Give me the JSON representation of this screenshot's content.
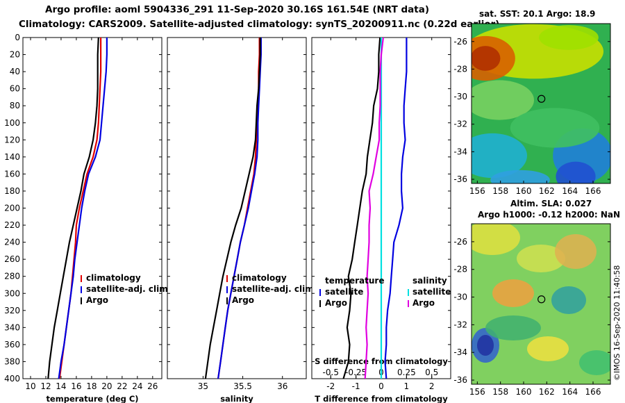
{
  "header": {
    "title_line1": "Argo profile: aoml 5904336_291 11-Sep-2020 30.16S 161.54E (NRT data)",
    "title_line2": "Climatology: CARS2009. Satellite-adjusted climatology: synTS_20200911.nc (0.22d earlier)"
  },
  "maps": {
    "sst": {
      "title": "sat. SST: 20.1 Argo: 18.9",
      "x_ticks": [
        "156",
        "158",
        "160",
        "162",
        "164",
        "166"
      ],
      "y_ticks": [
        "-26",
        "-28",
        "-30",
        "-32",
        "-34",
        "-36"
      ],
      "x_values": [
        156,
        158,
        160,
        162,
        164,
        166
      ],
      "y_values": [
        -26,
        -28,
        -30,
        -32,
        -34,
        -36
      ],
      "lon_range": [
        155.5,
        167.5
      ],
      "lat_range": [
        -36.3,
        -24.7
      ],
      "marker": {
        "lon": 161.54,
        "lat": -30.16
      }
    },
    "sla": {
      "title_line1": "Altim. SLA: 0.027",
      "title_line2": "Argo h1000: -0.12 h2000: NaN",
      "x_ticks": [
        "156",
        "158",
        "160",
        "162",
        "164",
        "166"
      ],
      "y_ticks": [
        "-26",
        "-28",
        "-30",
        "-32",
        "-34",
        "-36"
      ],
      "x_values": [
        156,
        158,
        160,
        162,
        164,
        166
      ],
      "y_values": [
        -26,
        -28,
        -30,
        -32,
        -34,
        -36
      ],
      "lon_range": [
        155.5,
        167.5
      ],
      "lat_range": [
        -36.3,
        -24.7
      ],
      "marker": {
        "lon": 161.54,
        "lat": -30.16
      }
    }
  },
  "watermark": "©IMOS 16-Sep-2020 11:40:58",
  "colors": {
    "climatology": "#e00000",
    "satellite": "#0000e0",
    "argo": "#000000",
    "s_satellite": "#00e0e0",
    "s_argo": "#e000e0"
  },
  "chart_data": [
    {
      "type": "line",
      "name": "temperature",
      "xlabel": "temperature (deg C)",
      "ylabel": "",
      "xlim": [
        9,
        27.2
      ],
      "ylim": [
        400,
        0
      ],
      "x_ticks": [
        10,
        12,
        14,
        16,
        18,
        20,
        22,
        24,
        26
      ],
      "y_ticks": [
        0,
        20,
        40,
        60,
        80,
        100,
        120,
        140,
        160,
        180,
        200,
        220,
        240,
        260,
        280,
        300,
        320,
        340,
        360,
        380,
        400
      ],
      "legend": [
        "climatology",
        "satellite-adj. clim.",
        "Argo"
      ],
      "legend_position": "lower-right",
      "series": [
        {
          "name": "climatology",
          "depth": [
            0,
            20,
            40,
            60,
            80,
            100,
            120,
            140,
            160,
            180,
            200,
            220,
            240,
            260,
            280,
            300,
            320,
            340,
            360,
            380,
            400
          ],
          "values": [
            19.2,
            19.2,
            19.2,
            19.1,
            19.0,
            18.9,
            18.7,
            18.2,
            17.4,
            16.9,
            16.4,
            16.0,
            15.9,
            15.7,
            15.5,
            15.3,
            15.0,
            14.7,
            14.4,
            14.1,
            13.8
          ]
        },
        {
          "name": "satellite-adj. clim.",
          "depth": [
            0,
            20,
            40,
            60,
            80,
            100,
            120,
            140,
            160,
            180,
            200,
            220,
            240,
            260,
            280,
            300,
            320,
            340,
            360,
            380,
            400
          ],
          "values": [
            20.0,
            20.0,
            19.9,
            19.7,
            19.5,
            19.3,
            19.1,
            18.5,
            17.6,
            17.1,
            16.7,
            16.4,
            16.1,
            15.8,
            15.6,
            15.3,
            15.0,
            14.7,
            14.4,
            14.0,
            13.7
          ]
        },
        {
          "name": "Argo",
          "depth": [
            0,
            20,
            40,
            60,
            80,
            100,
            120,
            140,
            160,
            180,
            200,
            220,
            240,
            260,
            280,
            300,
            320,
            340,
            360,
            380,
            400
          ],
          "values": [
            18.9,
            18.8,
            18.8,
            18.8,
            18.7,
            18.5,
            18.2,
            17.7,
            17.0,
            16.6,
            16.1,
            15.6,
            15.1,
            14.7,
            14.3,
            13.9,
            13.5,
            13.1,
            12.8,
            12.5,
            12.3
          ]
        }
      ]
    },
    {
      "type": "line",
      "name": "salinity",
      "xlabel": "salinity",
      "ylabel": "",
      "xlim": [
        34.55,
        36.3
      ],
      "ylim": [
        400,
        0
      ],
      "x_ticks": [
        35,
        35.5,
        36
      ],
      "x_tick_labels": [
        "35",
        "35.5",
        "36"
      ],
      "legend": [
        "climatology",
        "satellite-adj. clim.",
        "Argo"
      ],
      "legend_position": "lower-right",
      "series": [
        {
          "name": "climatology",
          "depth": [
            0,
            20,
            40,
            60,
            80,
            100,
            120,
            140,
            160,
            180,
            200,
            220,
            240,
            260,
            280,
            300,
            320,
            340,
            360,
            380,
            400
          ],
          "values": [
            35.71,
            35.71,
            35.7,
            35.7,
            35.69,
            35.68,
            35.67,
            35.66,
            35.64,
            35.6,
            35.56,
            35.52,
            35.47,
            35.43,
            35.39,
            35.35,
            35.31,
            35.28,
            35.25,
            35.22,
            35.19
          ]
        },
        {
          "name": "satellite-adj. clim.",
          "depth": [
            0,
            20,
            40,
            60,
            80,
            100,
            120,
            140,
            160,
            180,
            200,
            220,
            240,
            260,
            280,
            300,
            320,
            340,
            360,
            380,
            400
          ],
          "values": [
            35.73,
            35.73,
            35.72,
            35.71,
            35.7,
            35.69,
            35.69,
            35.68,
            35.65,
            35.61,
            35.57,
            35.52,
            35.47,
            35.43,
            35.39,
            35.35,
            35.31,
            35.28,
            35.25,
            35.22,
            35.19
          ]
        },
        {
          "name": "Argo",
          "depth": [
            0,
            20,
            40,
            60,
            80,
            100,
            120,
            140,
            160,
            180,
            200,
            220,
            240,
            260,
            280,
            300,
            320,
            340,
            360,
            380,
            400
          ],
          "values": [
            35.72,
            35.72,
            35.71,
            35.7,
            35.68,
            35.67,
            35.66,
            35.63,
            35.58,
            35.53,
            35.48,
            35.41,
            35.35,
            35.3,
            35.25,
            35.21,
            35.17,
            35.13,
            35.09,
            35.06,
            35.03
          ]
        }
      ]
    },
    {
      "type": "line",
      "name": "difference",
      "xlabel": "T difference from climatology",
      "top_axis_label": "S difference from climatology",
      "xlim": [
        -2.75,
        2.75
      ],
      "ylim": [
        400,
        0
      ],
      "x_ticks": [
        -2,
        -1,
        0,
        1,
        2
      ],
      "top_ticks": [
        -0.5,
        -0.25,
        0,
        0.25,
        0.5
      ],
      "top_tick_labels": [
        "-0.5",
        "-0.25",
        "0",
        "0.25",
        "0.5"
      ],
      "s_scale_factor": 4,
      "legend_temperature": {
        "title": "temperature",
        "items": [
          "satellite",
          "Argo"
        ]
      },
      "legend_salinity": {
        "title": "salinity",
        "items": [
          "satellite",
          "Argo"
        ]
      },
      "series": [
        {
          "name": "T satellite",
          "depth": [
            0,
            20,
            40,
            60,
            80,
            100,
            120,
            140,
            160,
            180,
            200,
            220,
            240,
            260,
            280,
            300,
            320,
            340,
            360,
            380,
            400
          ],
          "values": [
            1.0,
            1.0,
            1.0,
            0.95,
            0.9,
            0.9,
            0.95,
            0.85,
            0.8,
            0.8,
            0.85,
            0.7,
            0.5,
            0.45,
            0.4,
            0.35,
            0.25,
            0.2,
            0.2,
            0.15,
            0.2
          ]
        },
        {
          "name": "T Argo",
          "depth": [
            0,
            20,
            40,
            60,
            80,
            100,
            120,
            140,
            160,
            180,
            200,
            220,
            240,
            260,
            280,
            300,
            320,
            340,
            360,
            380,
            400
          ],
          "values": [
            -0.05,
            -0.1,
            -0.1,
            -0.15,
            -0.3,
            -0.35,
            -0.45,
            -0.55,
            -0.6,
            -0.75,
            -0.85,
            -0.95,
            -1.05,
            -1.15,
            -1.3,
            -1.2,
            -1.25,
            -1.35,
            -1.25,
            -1.3,
            -1.5
          ]
        },
        {
          "name": "S satellite",
          "depth": [
            0,
            20,
            40,
            60,
            80,
            100,
            120,
            140,
            160,
            180,
            200,
            220,
            240,
            260,
            280,
            300,
            320,
            340,
            360,
            380,
            400
          ],
          "values": [
            0.0,
            0.0,
            0.0,
            0.0,
            0.0,
            0.0,
            0.0,
            0.0,
            0.0,
            0.0,
            0.0,
            0.0,
            0.0,
            0.0,
            0.0,
            0.0,
            0.0,
            0.0,
            0.0,
            0.0,
            0.0
          ]
        },
        {
          "name": "S Argo",
          "depth": [
            0,
            20,
            40,
            60,
            80,
            100,
            120,
            140,
            160,
            180,
            200,
            220,
            240,
            260,
            280,
            300,
            320,
            340,
            360,
            380,
            400
          ],
          "values": [
            0.02,
            0.0,
            -0.01,
            -0.01,
            -0.01,
            -0.02,
            -0.02,
            -0.05,
            -0.08,
            -0.12,
            -0.11,
            -0.12,
            -0.12,
            -0.13,
            -0.14,
            -0.13,
            -0.14,
            -0.15,
            -0.14,
            -0.15,
            -0.16
          ]
        }
      ]
    }
  ]
}
